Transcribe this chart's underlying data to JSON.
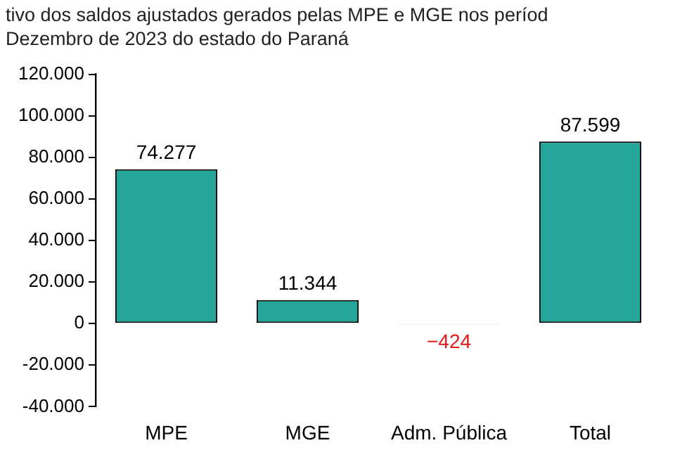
{
  "chart_data": {
    "type": "bar",
    "title": "tivo dos saldos ajustados gerados pelas MPE e MGE nos períod\nDezembro de 2023 do estado do Paraná",
    "categories": [
      "MPE",
      "MGE",
      "Adm. Pública",
      "Total"
    ],
    "values": [
      74277,
      11344,
      -424,
      87599
    ],
    "value_labels": [
      "74.277",
      "11.344",
      "−424",
      "87.599"
    ],
    "colors": [
      "#26a69a",
      "#26a69a",
      "#000000",
      "#26a69a"
    ],
    "ylim": [
      -40000,
      120000
    ],
    "yticks": [
      {
        "value": -40000,
        "label": "-40.000"
      },
      {
        "value": -20000,
        "label": "-20.000"
      },
      {
        "value": 0,
        "label": "0"
      },
      {
        "value": 20000,
        "label": "20.000"
      },
      {
        "value": 40000,
        "label": "40.000"
      },
      {
        "value": 60000,
        "label": "60.000"
      },
      {
        "value": 80000,
        "label": "80.000"
      },
      {
        "value": 100000,
        "label": "100.000"
      },
      {
        "value": 120000,
        "label": "120.000"
      }
    ],
    "grid": false,
    "legend": false
  }
}
